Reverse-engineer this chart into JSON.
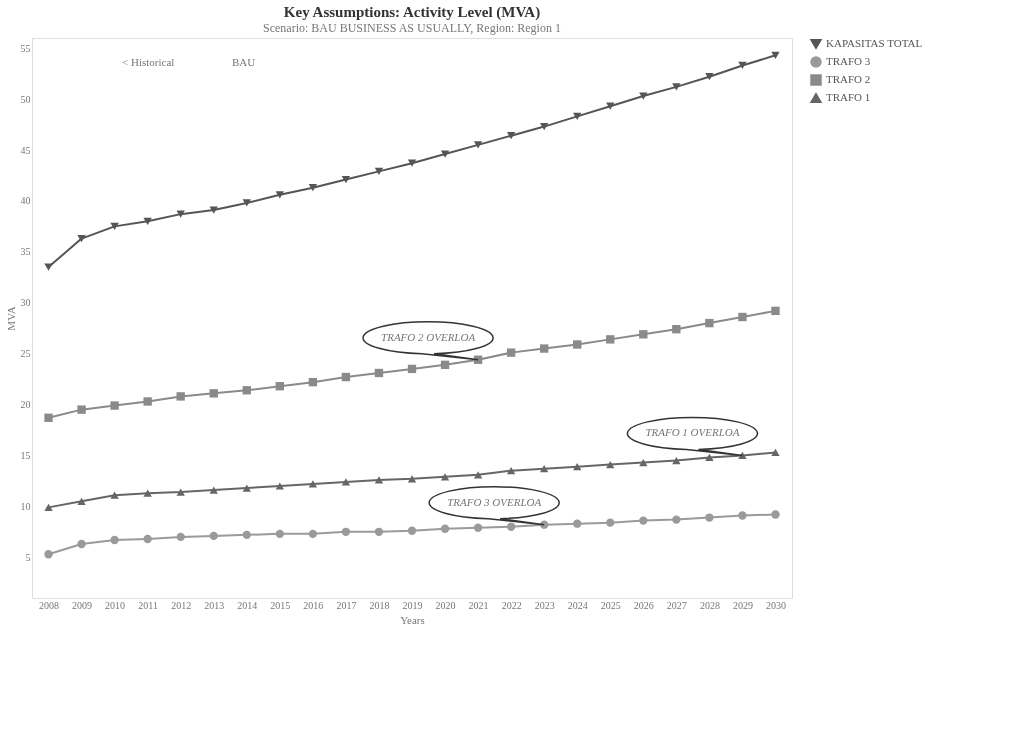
{
  "chart_data": {
    "type": "line",
    "title": "Key Assumptions: Activity Level (MVA)",
    "subtitle": "Scenario: BAU BUSINESS AS USUALLY, Region: Region 1",
    "xlabel": "Years",
    "ylabel": "MVA",
    "categories": [
      "2008",
      "2009",
      "2010",
      "2011",
      "2012",
      "2013",
      "2014",
      "2015",
      "2016",
      "2017",
      "2018",
      "2019",
      "2020",
      "2021",
      "2022",
      "2023",
      "2024",
      "2025",
      "2026",
      "2027",
      "2028",
      "2029",
      "2030"
    ],
    "series": [
      {
        "name": "KAPASITAS TOTAL",
        "color": "#555555",
        "marker": "triangle-down",
        "values": [
          33.5,
          36.3,
          37.5,
          38.0,
          38.7,
          39.1,
          39.8,
          40.6,
          41.3,
          42.1,
          42.9,
          43.7,
          44.6,
          45.5,
          46.4,
          47.3,
          48.3,
          49.3,
          50.3,
          51.2,
          52.2,
          53.3,
          54.3
        ]
      },
      {
        "name": "TRAFO 3",
        "color": "#9a9a9a",
        "marker": "circle",
        "values": [
          5.3,
          6.3,
          6.7,
          6.8,
          7.0,
          7.1,
          7.2,
          7.3,
          7.3,
          7.5,
          7.5,
          7.6,
          7.8,
          7.9,
          8.0,
          8.2,
          8.3,
          8.4,
          8.6,
          8.7,
          8.9,
          9.1,
          9.2
        ]
      },
      {
        "name": "TRAFO 2",
        "color": "#8a8a8a",
        "marker": "square",
        "values": [
          18.7,
          19.5,
          19.9,
          20.3,
          20.8,
          21.1,
          21.4,
          21.8,
          22.2,
          22.7,
          23.1,
          23.5,
          23.9,
          24.4,
          25.1,
          25.5,
          25.9,
          26.4,
          26.9,
          27.4,
          28.0,
          28.6,
          29.2
        ]
      },
      {
        "name": "TRAFO 1",
        "color": "#666666",
        "marker": "triangle",
        "values": [
          9.9,
          10.5,
          11.1,
          11.3,
          11.4,
          11.6,
          11.8,
          12.0,
          12.2,
          12.4,
          12.6,
          12.7,
          12.9,
          13.1,
          13.5,
          13.7,
          13.9,
          14.1,
          14.3,
          14.5,
          14.8,
          15.0,
          15.3
        ]
      }
    ],
    "ylim": [
      1,
      56
    ],
    "yticks": [
      5,
      10,
      15,
      20,
      25,
      30,
      35,
      40,
      45,
      50,
      55
    ],
    "grid": false,
    "legend": "top right",
    "annotations": [
      "< Historical",
      "BAU",
      {
        "text": "TRAFO 2 OVERLOA",
        "x": "2021",
        "y": 24.4
      },
      {
        "text": "TRAFO 1 OVERLOA",
        "x": "2029",
        "y": 15.0
      },
      {
        "text": "TRAFO 3 OVERLOA",
        "x": "2023",
        "y": 8.2
      }
    ]
  }
}
